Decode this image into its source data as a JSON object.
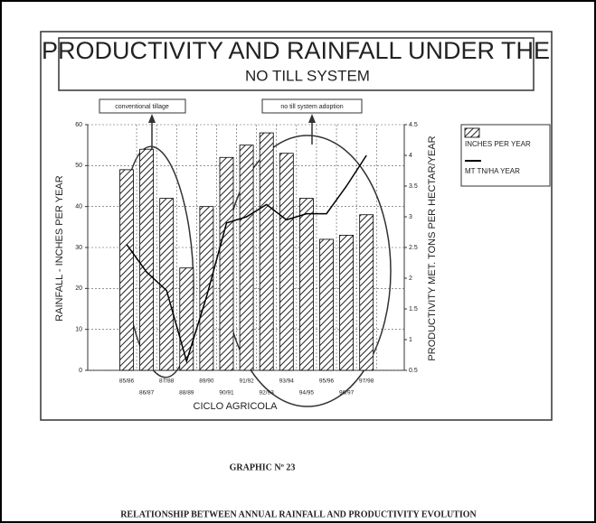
{
  "chart_data": {
    "type": "bar",
    "title": "PRODUCTIVITY AND RAINFALL UNDER THE",
    "subtitle": "NO TILL SYSTEM",
    "x_label": "CICLO AGRICOLA",
    "y_label": "RAINFALL - INCHES PER YEAR",
    "y2_label": "PRODUCTIVITY MET. TONS PER HECTAR/YEAR",
    "annotations": [
      "conventional tillage",
      "no till system adoption"
    ],
    "categories": [
      "85/86",
      "86/87",
      "87/88",
      "88/89",
      "89/90",
      "90/91",
      "91/92",
      "92/93",
      "93/94",
      "94/95",
      "95/96",
      "96/97",
      "97/98"
    ],
    "series": [
      {
        "name": "INCHES PER YEAR",
        "type": "bar",
        "color": "#000000",
        "values": [
          49,
          54,
          42,
          25,
          40,
          52,
          55,
          58,
          53,
          42,
          32,
          33,
          38
        ]
      },
      {
        "name": "MT TN/HA YEAR",
        "type": "line",
        "axis": "y2",
        "color": "#000000",
        "values": [
          2.55,
          2.1,
          1.8,
          0.65,
          1.7,
          2.9,
          3.0,
          3.2,
          2.95,
          3.05,
          3.05,
          3.5,
          4.0
        ]
      }
    ],
    "ylim": [
      0,
      60
    ],
    "yticks": [
      0,
      10,
      20,
      30,
      40,
      50,
      60
    ],
    "y2lim": [
      0.5,
      4.5
    ],
    "y2ticks": [
      0.5,
      1,
      1.5,
      2,
      2.5,
      3,
      3.5,
      4,
      4.5
    ],
    "grid": true,
    "legend": "right"
  },
  "figure": {
    "label": "GRAPHIC Nº 23",
    "caption": "RELATIONSHIP BETWEEN ANNUAL RAINFALL AND PRODUCTIVITY EVOLUTION"
  }
}
